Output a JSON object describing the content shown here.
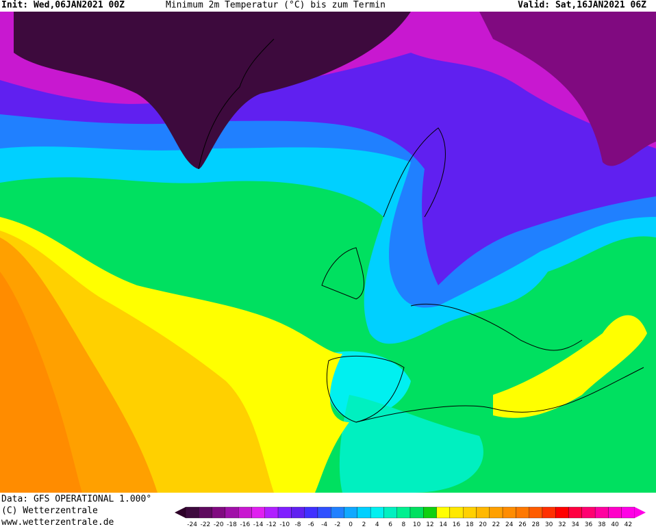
{
  "header": {
    "init": "Init: Wed,06JAN2021 00Z",
    "title": "Minimum 2m Temperatur (°C) bis zum Termin",
    "valid": "Valid: Sat,16JAN2021 06Z"
  },
  "footer": {
    "data": "Data: GFS OPERATIONAL 1.000°",
    "copyright": "(C) Wetterzentrale",
    "url": "www.wetterzentrale.de"
  },
  "colorbar": {
    "ticks": [
      -24,
      -22,
      -20,
      -18,
      -16,
      -14,
      -12,
      -10,
      -8,
      -6,
      -4,
      -2,
      0,
      2,
      4,
      6,
      8,
      10,
      12,
      14,
      16,
      18,
      20,
      22,
      24,
      26,
      28,
      30,
      32,
      34,
      36,
      38,
      40,
      42
    ],
    "colors": [
      "#3d0a3d",
      "#5e0a5e",
      "#800a80",
      "#a010a8",
      "#c818d0",
      "#e020f0",
      "#b020ff",
      "#8020ff",
      "#6020f0",
      "#4030ff",
      "#3050ff",
      "#2080ff",
      "#10a8ff",
      "#00d0ff",
      "#00f0f0",
      "#00f0c0",
      "#00f090",
      "#00e060",
      "#10d010",
      "#ffff00",
      "#ffe800",
      "#ffd000",
      "#ffb800",
      "#ffa000",
      "#ff8c00",
      "#ff7800",
      "#ff5c00",
      "#ff3000",
      "#ff0000",
      "#ff0040",
      "#ff0070",
      "#ff00a0",
      "#ff00c8",
      "#ff00e6"
    ]
  }
}
